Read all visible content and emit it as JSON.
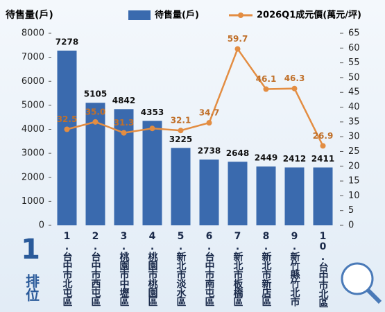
{
  "chart_data": {
    "type": "bar-line",
    "y_label": "待售量(戶)",
    "rank_number": "1",
    "rank_text": "排位",
    "categories": [
      "1.台中市北屯區",
      "2.台中市西屯區",
      "3.桃園市中壢區",
      "4.桃園市桃園區",
      "5.新北市淡水區",
      "6.台中市南屯區",
      "7.新北市板橋區",
      "8.新北市新店區",
      "9.新竹縣竹北市",
      "10.台中市北區"
    ],
    "series": [
      {
        "name": "待售量(戶)",
        "color": "#3a6aae",
        "values": [
          7278,
          5105,
          4842,
          4353,
          3225,
          2738,
          2648,
          2449,
          2412,
          2411
        ]
      },
      {
        "name": "2026Q1成元價(萬元/坪)",
        "color": "#e38d42",
        "axis": "y2",
        "values": [
          32.5,
          35.0,
          31.3,
          32.8,
          32.1,
          34.7,
          59.7,
          46.1,
          46.3,
          26.9
        ],
        "value_labels": [
          "32.5",
          "35.0",
          "31.3",
          null,
          "32.1",
          "34.7",
          "59.7",
          "46.1",
          "46.3",
          "26.9"
        ]
      }
    ],
    "ylim": [
      0,
      8000
    ],
    "yticks": [
      0,
      1000,
      2000,
      3000,
      4000,
      5000,
      6000,
      7000,
      8000
    ],
    "y2lim": [
      0,
      65
    ],
    "y2ticks": [
      0,
      5,
      10,
      15,
      20,
      25,
      30,
      35,
      40,
      45,
      50,
      55,
      60,
      65
    ]
  }
}
